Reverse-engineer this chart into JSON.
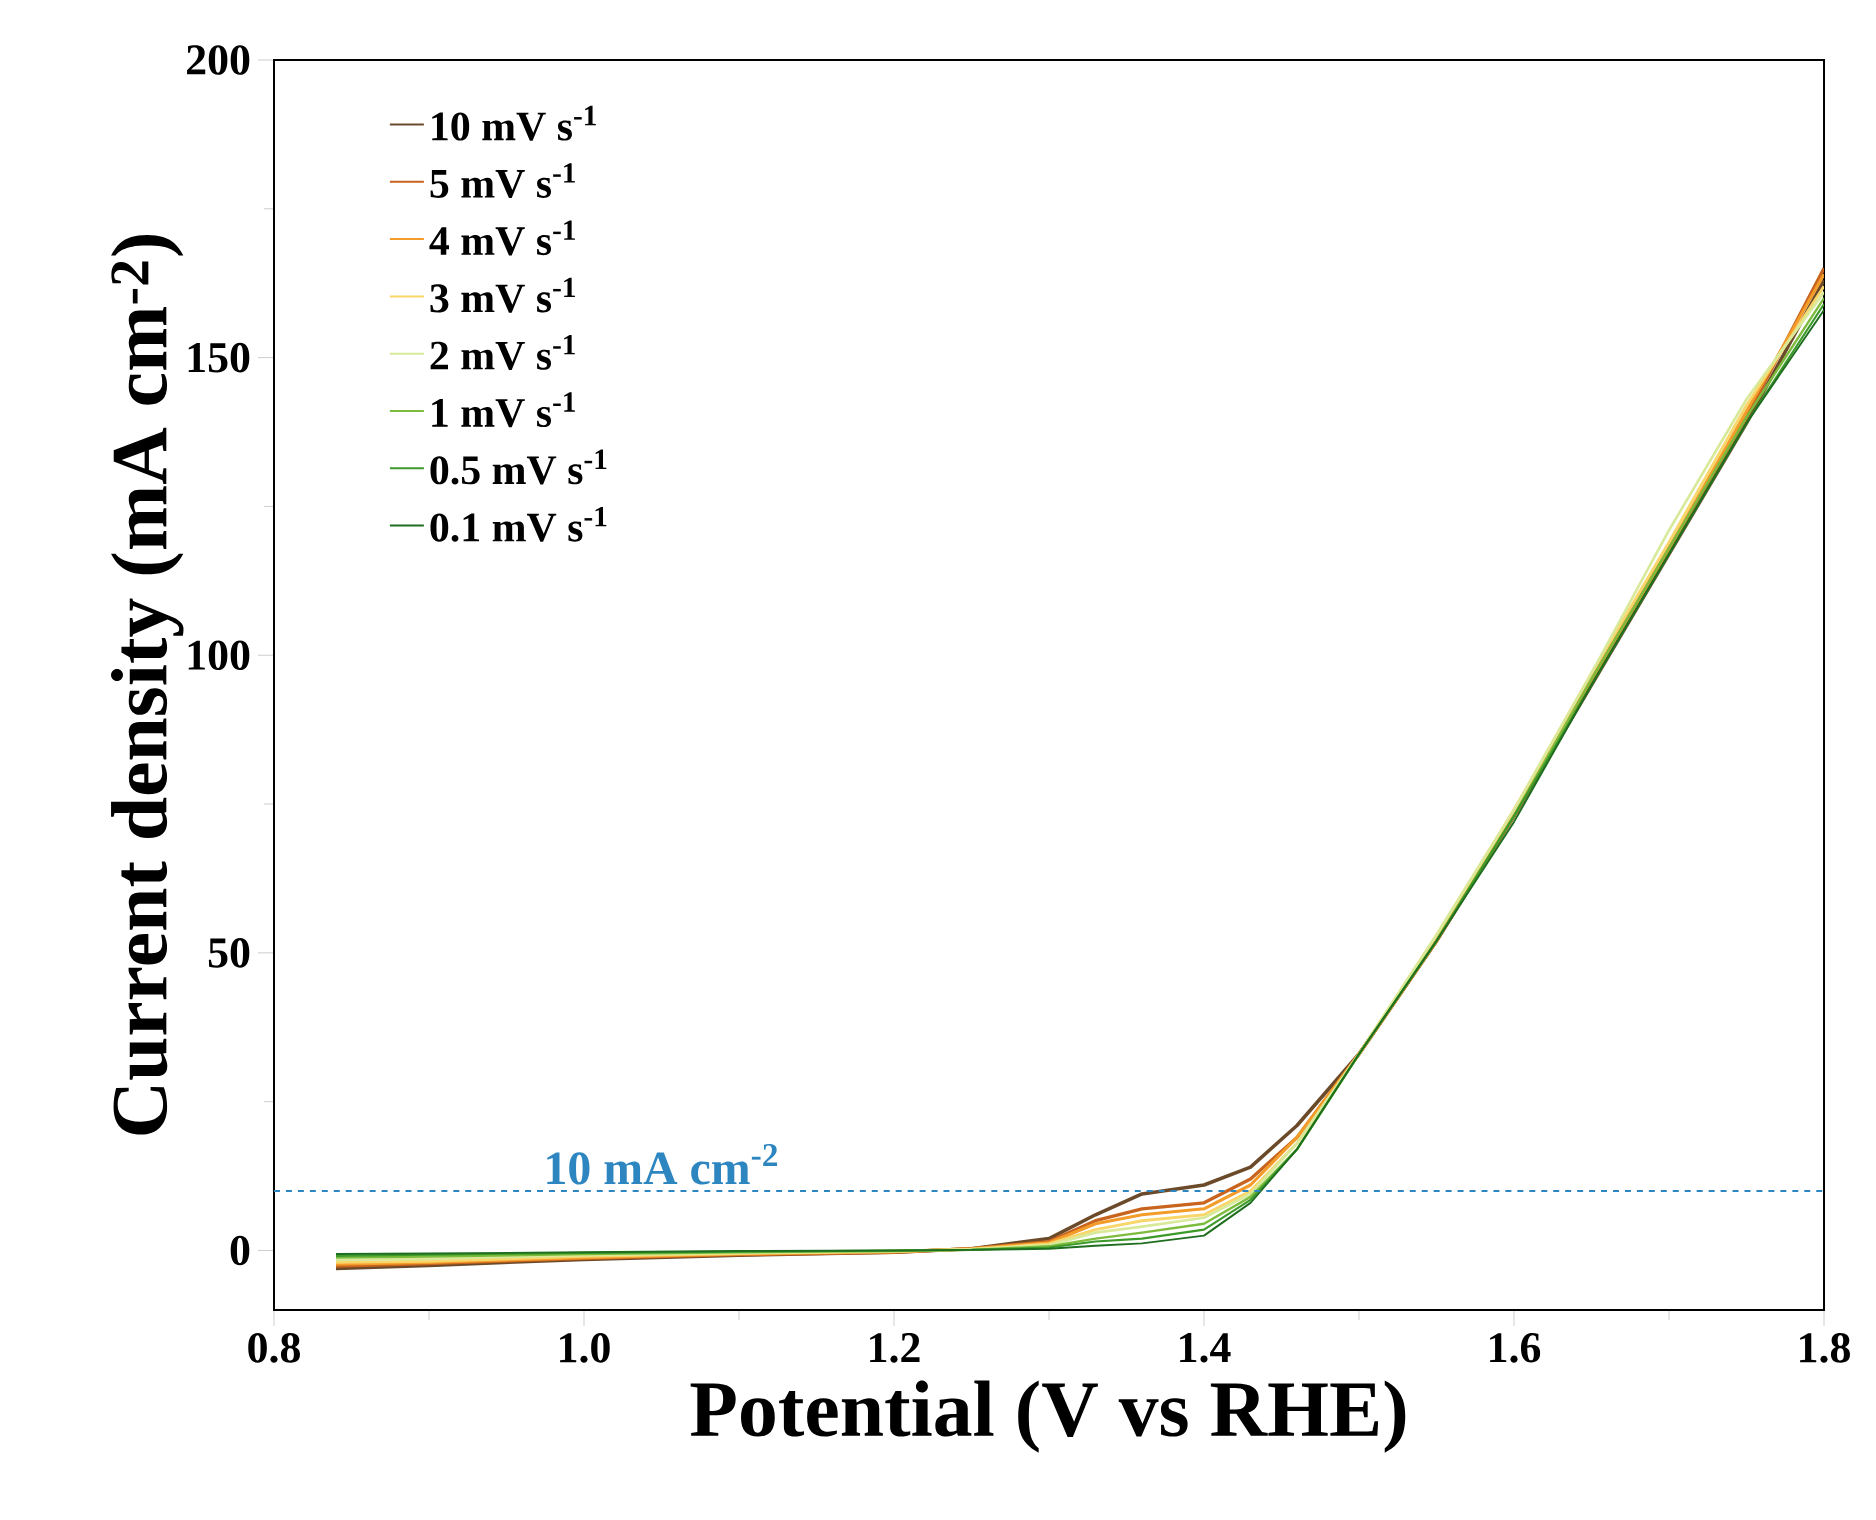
{
  "chart_data": {
    "type": "line",
    "xlabel": "Potential (V vs RHE)",
    "ylabel": "Current density (mA cm$^{-2}$)",
    "xlim": [
      0.8,
      1.8
    ],
    "ylim": [
      -10,
      200
    ],
    "xticks": [
      0.8,
      {
        "value": 1,
        "label": "1.0"
      },
      1.2,
      1.4,
      1.6,
      1.8
    ],
    "yticks": [
      0,
      50,
      100,
      150,
      200
    ],
    "x": [
      0.84,
      0.9,
      1.0,
      1.1,
      1.2,
      1.25,
      1.3,
      1.33,
      1.36,
      1.4,
      1.43,
      1.46,
      1.5,
      1.55,
      1.6,
      1.65,
      1.7,
      1.75,
      1.8
    ],
    "series": [
      {
        "name": "10 mV s$^{-1}$",
        "color": "#6b4a2a",
        "values": [
          -3,
          -2.5,
          -1.5,
          -0.8,
          -0.3,
          0.3,
          2,
          6,
          9.5,
          11,
          14,
          21,
          33,
          52,
          73,
          95,
          117,
          139,
          163
        ]
      },
      {
        "name": "5 mV s$^{-1}$",
        "color": "#c8641e",
        "values": [
          -2.6,
          -2.2,
          -1.3,
          -0.7,
          -0.3,
          0.3,
          1.5,
          5,
          7,
          8,
          12,
          19,
          33,
          52,
          73,
          96,
          118,
          140,
          165
        ]
      },
      {
        "name": "4 mV s$^{-1}$",
        "color": "#f39c2a",
        "values": [
          -2.3,
          -2,
          -1.2,
          -0.6,
          -0.2,
          0.3,
          1.3,
          4.5,
          6,
          7,
          11,
          19,
          33,
          52,
          74,
          96,
          118,
          141,
          164
        ]
      },
      {
        "name": "3 mV s$^{-1}$",
        "color": "#f8d66a",
        "values": [
          -2,
          -1.8,
          -1,
          -0.5,
          -0.2,
          0.2,
          1.1,
          3.5,
          5,
          6,
          10,
          18,
          33,
          53,
          74,
          97,
          119,
          142,
          162
        ]
      },
      {
        "name": "2 mV s$^{-1}$",
        "color": "#d8ea9a",
        "values": [
          -1.6,
          -1.4,
          -0.8,
          -0.4,
          -0.1,
          0.2,
          0.9,
          3,
          4,
          5.5,
          9.5,
          18,
          33,
          53,
          74,
          97,
          121,
          143,
          161
        ]
      },
      {
        "name": "1 mV s$^{-1}$",
        "color": "#7dbb3c",
        "values": [
          -1.2,
          -1,
          -0.6,
          -0.3,
          -0.1,
          0.1,
          0.7,
          2,
          3,
          4.5,
          9,
          17,
          33,
          52,
          73,
          96,
          118,
          140,
          160
        ]
      },
      {
        "name": "0.5 mV s$^{-1}$",
        "color": "#3c9a2a",
        "values": [
          -0.9,
          -0.7,
          -0.4,
          -0.2,
          0,
          0.1,
          0.5,
          1.5,
          2,
          3.5,
          8.5,
          17,
          33,
          52,
          73,
          95,
          117,
          139,
          159
        ]
      },
      {
        "name": "0.1 mV s$^{-1}$",
        "color": "#1f6e1f",
        "values": [
          -0.6,
          -0.5,
          -0.3,
          -0.1,
          0,
          0.1,
          0.3,
          0.8,
          1.2,
          2.5,
          8,
          17,
          33,
          52,
          72,
          95,
          117,
          139,
          158
        ]
      }
    ],
    "ref_lines": [
      {
        "axis": "y",
        "value": 10,
        "label": "10 mA cm$^{-2}$",
        "color": "#2e86c1",
        "line_style": "dashed"
      }
    ],
    "legend": "top left",
    "grid": false,
    "marker": "none",
    "line_style": "solid"
  }
}
